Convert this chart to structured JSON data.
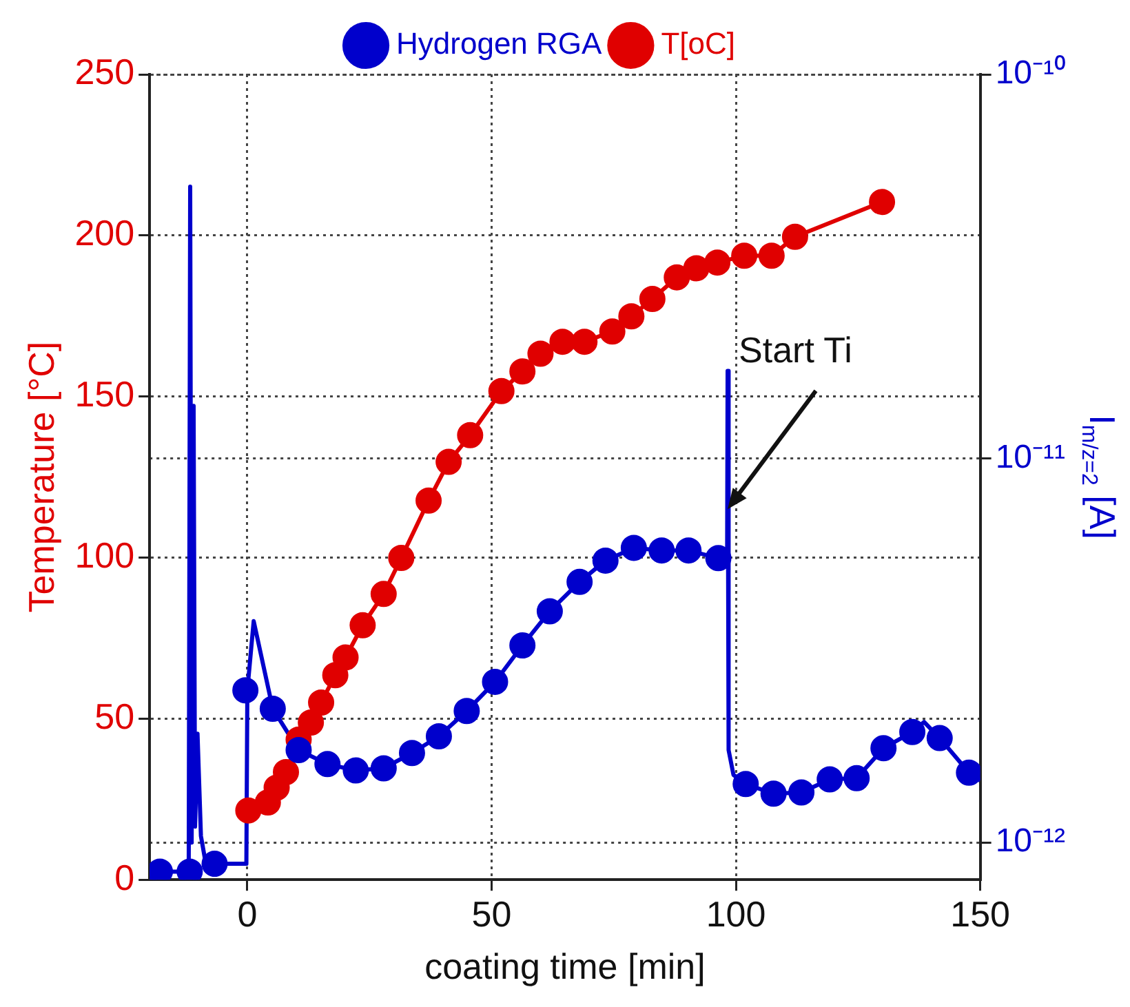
{
  "chart_data": {
    "type": "line",
    "xlabel": "coating time [min]",
    "ylabel": "Temperature [°C]",
    "y2label": "I$_{m/z=2}$ [A]",
    "xlim": [
      -20,
      150
    ],
    "xticks": [
      0,
      50,
      100,
      150
    ],
    "ylim": [
      0,
      250
    ],
    "yticks": [
      0,
      50,
      100,
      150,
      200,
      250
    ],
    "y2lim": [
      8e-13,
      1e-10
    ],
    "y2ticks": [
      {
        "value": 1e-12,
        "label": "10⁻¹²"
      },
      {
        "value": 1e-11,
        "label": "10⁻¹¹"
      },
      {
        "value": 1e-10,
        "label": "10⁻¹⁰"
      }
    ],
    "log": "y2",
    "grid": true,
    "legend": "top",
    "marker": "circle",
    "series": [
      {
        "name": "T[oC]",
        "color": "#e00000",
        "x": [
          0.2,
          4.2,
          6,
          7.9,
          10.5,
          13,
          15.1,
          18,
          20.1,
          23.6,
          27.9,
          31.5,
          37.1,
          41.2,
          45.6,
          52,
          56.3,
          60,
          64.5,
          69,
          74.7,
          78.6,
          82.9,
          87.9,
          91.9,
          96.2,
          101.7,
          107.3,
          112.1,
          129.9
        ],
        "values": [
          21.5,
          24,
          28.6,
          33.4,
          43.5,
          48.8,
          55,
          63.5,
          69,
          79,
          88.7,
          99.9,
          117.7,
          129.7,
          138,
          151.7,
          157.8,
          163.3,
          167,
          167,
          170.2,
          174.9,
          180.3,
          187,
          189.8,
          191.6,
          193.7,
          193.7,
          199.6,
          210.4
        ]
      },
      {
        "name": "Hydrogen RGA",
        "type": "scatter",
        "color": "#0000cc",
        "axis": "y2",
        "x": [
          -17.9,
          -11.8,
          -6.7,
          -0.4,
          5.2,
          10.5,
          16.4,
          22.2,
          27.9,
          33.7,
          39.2,
          44.9,
          50.7,
          56.3,
          61.9,
          68,
          73.3,
          79.1,
          84.8,
          90.3,
          96.4,
          102,
          107.7,
          113.4,
          119.2,
          124.7,
          130.2,
          136.1,
          141.7,
          147.7
        ],
        "values": [
          8.4e-13,
          8.4e-13,
          8.8e-13,
          2.49e-12,
          2.23e-12,
          1.74e-12,
          1.6e-12,
          1.54e-12,
          1.56e-12,
          1.71e-12,
          1.89e-12,
          2.2e-12,
          2.62e-12,
          3.26e-12,
          4e-12,
          4.77e-12,
          5.42e-12,
          5.85e-12,
          5.76e-12,
          5.76e-12,
          5.5e-12,
          1.42e-12,
          1.34e-12,
          1.35e-12,
          1.46e-12,
          1.47e-12,
          1.76e-12,
          1.94e-12,
          1.87e-12,
          1.52e-12
        ]
      },
      {
        "color": "#0000cc",
        "axis": "y2",
        "marker": "none",
        "x": [
          -17.9,
          -12,
          -11.7,
          -11.4,
          -11,
          -10.7,
          -10.2,
          -9.5,
          -8.5,
          -0.2,
          0,
          1.3,
          5.2,
          10.5,
          16.4,
          22.2,
          27.9,
          33.7,
          39.2,
          44.9,
          50.7,
          56.3,
          61.9,
          68,
          73.3,
          79.1,
          84.8,
          90.3,
          96.4,
          98.2,
          98.3,
          98.5,
          99.5,
          102,
          107.7,
          113.4,
          119.2,
          124.7,
          130.2,
          136.1,
          138.5,
          141.7,
          147.7,
          150
        ],
        "values": [
          8.4e-13,
          8.4e-13,
          5.1e-11,
          1e-12,
          1.37e-11,
          1.1e-12,
          1.92e-12,
          1.04e-12,
          8.8e-13,
          8.8e-13,
          2.49e-12,
          3.77e-12,
          2.23e-12,
          1.74e-12,
          1.6e-12,
          1.54e-12,
          1.56e-12,
          1.71e-12,
          1.89e-12,
          2.2e-12,
          2.62e-12,
          3.26e-12,
          4e-12,
          4.77e-12,
          5.42e-12,
          5.85e-12,
          5.76e-12,
          5.76e-12,
          5.5e-12,
          5.5e-12,
          1.69e-11,
          1.74e-12,
          1.5e-12,
          1.42e-12,
          1.34e-12,
          1.35e-12,
          1.46e-12,
          1.47e-12,
          1.76e-12,
          1.94e-12,
          2.06e-12,
          1.87e-12,
          1.52e-12,
          1.45e-12
        ]
      }
    ],
    "annotations": [
      {
        "text": "Start Ti",
        "x": 98.3,
        "y": 115
      }
    ]
  }
}
